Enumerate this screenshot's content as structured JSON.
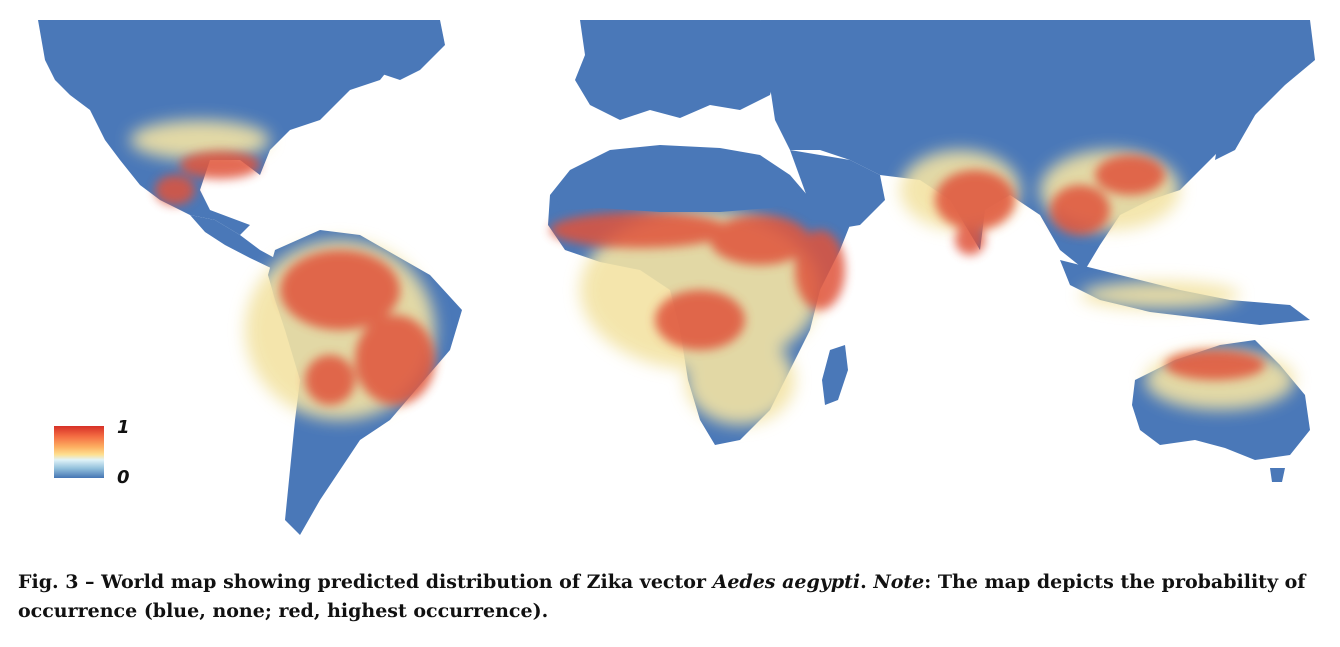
{
  "legend": {
    "max_label": "1",
    "min_label": "0",
    "colors": {
      "high": "#d73027",
      "mid": "#fee090",
      "low": "#4575b4"
    }
  },
  "caption": {
    "fig_label": "Fig. 3 – World map showing predicted distribution of Zika vector ",
    "species": "Aedes aegypti",
    "note_label": "Note",
    "note_text": ": The map depicts the probability of occurrence (blue, none; red, highest occurrence)."
  },
  "map": {
    "ocean_color": "#ffffff",
    "land_low_color": "#4a78b8",
    "mid_color": "#f3e3a4",
    "high_color": "#e0533a"
  }
}
